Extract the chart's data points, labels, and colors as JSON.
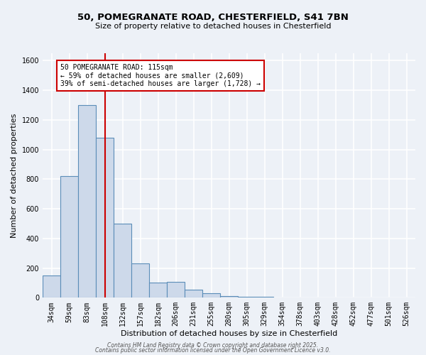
{
  "title_line1": "50, POMEGRANATE ROAD, CHESTERFIELD, S41 7BN",
  "title_line2": "Size of property relative to detached houses in Chesterfield",
  "xlabel": "Distribution of detached houses by size in Chesterfield",
  "ylabel": "Number of detached properties",
  "bins": [
    "34sqm",
    "59sqm",
    "83sqm",
    "108sqm",
    "132sqm",
    "157sqm",
    "182sqm",
    "206sqm",
    "231sqm",
    "255sqm",
    "280sqm",
    "305sqm",
    "329sqm",
    "354sqm",
    "378sqm",
    "403sqm",
    "428sqm",
    "452sqm",
    "477sqm",
    "501sqm",
    "526sqm"
  ],
  "values": [
    150,
    820,
    1300,
    1080,
    500,
    230,
    100,
    105,
    55,
    30,
    12,
    8,
    5,
    0,
    0,
    0,
    0,
    0,
    0,
    0,
    0
  ],
  "bar_color": "#cdd9ea",
  "bar_edge_color": "#5b8db8",
  "red_line_index": 3,
  "annotation_line1": "50 POMEGRANATE ROAD: 115sqm",
  "annotation_line2": "← 59% of detached houses are smaller (2,609)",
  "annotation_line3": "39% of semi-detached houses are larger (1,728) →",
  "annotation_box_color": "#ffffff",
  "annotation_box_edge": "#cc0000",
  "ylim": [
    0,
    1650
  ],
  "yticks": [
    0,
    200,
    400,
    600,
    800,
    1000,
    1200,
    1400,
    1600
  ],
  "footer1": "Contains HM Land Registry data © Crown copyright and database right 2025.",
  "footer2": "Contains public sector information licensed under the Open Government Licence v3.0.",
  "background_color": "#edf1f7",
  "grid_color": "#ffffff",
  "tick_fontsize": 7,
  "ylabel_fontsize": 8,
  "xlabel_fontsize": 8
}
